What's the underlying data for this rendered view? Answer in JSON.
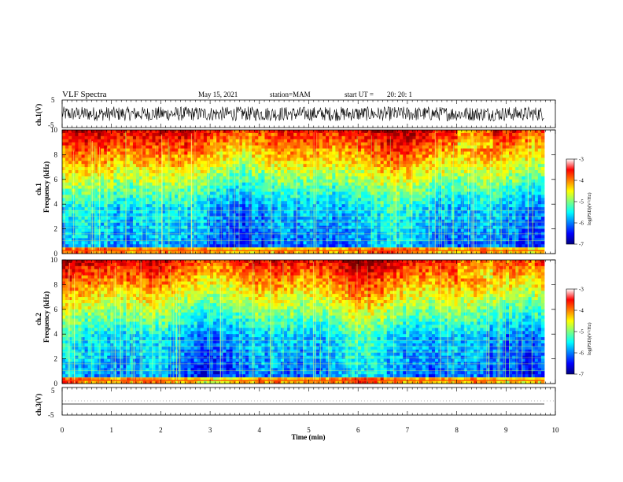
{
  "header": {
    "title": "VLF Spectra",
    "date": "May 15, 2021",
    "station": "station=MAM",
    "start": "start UT =",
    "start_time": "20: 20: 1"
  },
  "colors": {
    "jet": [
      "#00007f",
      "#0000ff",
      "#007fff",
      "#00ffff",
      "#7fff7f",
      "#ffff00",
      "#ff7f00",
      "#ff0000",
      "#7f0000"
    ],
    "trace": "#000000"
  },
  "chart_data": [
    {
      "type": "line",
      "ylabel": "ch.1(V)",
      "ylim": [
        -5,
        5
      ],
      "yticks": [
        "5",
        "-5"
      ],
      "x": "time (min), dense noisy trace",
      "series": [
        {
          "values_range": [
            -2.5,
            2.5
          ]
        }
      ]
    },
    {
      "type": "heatmap",
      "ylabel": "ch.1 Frequency (kHz)",
      "ylim": [
        0,
        10
      ],
      "yticks": [
        "0",
        "2",
        "4",
        "6",
        "8",
        "10"
      ],
      "xlim": [
        0,
        10
      ],
      "colorbar": {
        "label": "log(PSD)(V²/Hz)",
        "range": [
          -7,
          -3
        ],
        "ticks": [
          "-3",
          "-4",
          "-5",
          "-6",
          "-7"
        ]
      }
    },
    {
      "type": "heatmap",
      "ylabel": "ch.2 Frequency (kHz)",
      "ylim": [
        0,
        10
      ],
      "yticks": [
        "0",
        "2",
        "4",
        "6",
        "8",
        "10"
      ],
      "xlim": [
        0,
        10
      ],
      "colorbar": {
        "label": "log(PSD)(V²/Hz)",
        "range": [
          -7,
          -3
        ],
        "ticks": [
          "-3",
          "-4",
          "-5",
          "-6",
          "-7"
        ]
      }
    },
    {
      "type": "line",
      "ylabel": "ch.3(V)",
      "ylim": [
        -5,
        5
      ],
      "yticks": [
        "5",
        "0",
        "-5"
      ],
      "series": [
        {
          "values_range": [
            -1.5,
            -1.5
          ]
        }
      ]
    }
  ],
  "xaxis": {
    "label": "Time (min)",
    "ticks": [
      "0",
      "1",
      "2",
      "3",
      "4",
      "5",
      "6",
      "7",
      "8",
      "9",
      "10"
    ]
  },
  "panels": {
    "ch1_trace_label": "ch.1(V)",
    "ch1_spec_label_a": "ch.1",
    "ch1_spec_label_b": "Frequency (kHz)",
    "ch2_spec_label_a": "ch.2",
    "ch2_spec_label_b": "Frequency (kHz)",
    "ch3_trace_label": "ch.3(V)",
    "cb_label": "log(PSD)(V²/Hz)"
  }
}
